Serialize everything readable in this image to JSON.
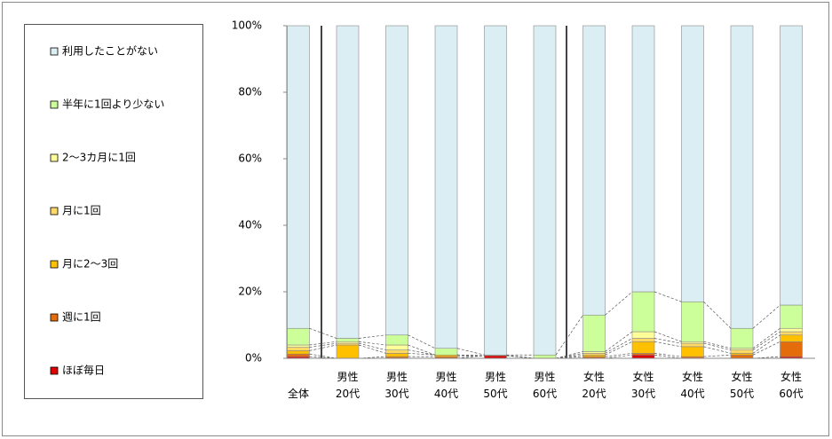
{
  "chart_data": {
    "type": "stacked-bar",
    "categories": [
      "全体",
      "男性\n20代",
      "男性\n30代",
      "男性\n40代",
      "男性\n50代",
      "男性\n60代",
      "女性\n20代",
      "女性\n30代",
      "女性\n40代",
      "女性\n50代",
      "女性\n60代"
    ],
    "series": [
      {
        "name": "ほぼ毎日",
        "color": "#e00000",
        "values": [
          0.5,
          0,
          0,
          0,
          0.8,
          0,
          0,
          1,
          0,
          0,
          0.5
        ]
      },
      {
        "name": "週に1回",
        "color": "#e46c0a",
        "values": [
          0.8,
          0,
          0.5,
          0.5,
          0,
          0,
          0.5,
          0.5,
          0.5,
          1,
          4.5
        ]
      },
      {
        "name": "月に2〜3回",
        "color": "#ffc000",
        "values": [
          1,
          4,
          1,
          0.5,
          0,
          0,
          0.5,
          3.5,
          3,
          0.5,
          2
        ]
      },
      {
        "name": "月に1回",
        "color": "#ffd966",
        "values": [
          1,
          0.5,
          1,
          0,
          0,
          0,
          0.5,
          1,
          1,
          1,
          1
        ]
      },
      {
        "name": "2〜3カ月に1回",
        "color": "#ffff99",
        "values": [
          0.7,
          0.5,
          1.5,
          0,
          0,
          0,
          0.5,
          2,
          0.5,
          0.5,
          1
        ]
      },
      {
        "name": "半年に1回より少ない",
        "color": "#ccff99",
        "values": [
          5,
          1,
          3,
          2,
          0.2,
          1,
          11,
          12,
          12,
          6,
          7
        ]
      },
      {
        "name": "利用したことがない",
        "color": "#daeef3",
        "values": [
          91,
          94,
          93,
          97,
          99,
          99,
          87,
          80,
          83,
          91,
          84
        ]
      }
    ],
    "ylim": [
      0,
      100
    ],
    "yticks": [
      {
        "value": 0,
        "label": "0%"
      },
      {
        "value": 20,
        "label": "20%"
      },
      {
        "value": 40,
        "label": "40%"
      },
      {
        "value": 60,
        "label": "60%"
      },
      {
        "value": 80,
        "label": "80%"
      },
      {
        "value": 100,
        "label": "100%"
      }
    ]
  }
}
